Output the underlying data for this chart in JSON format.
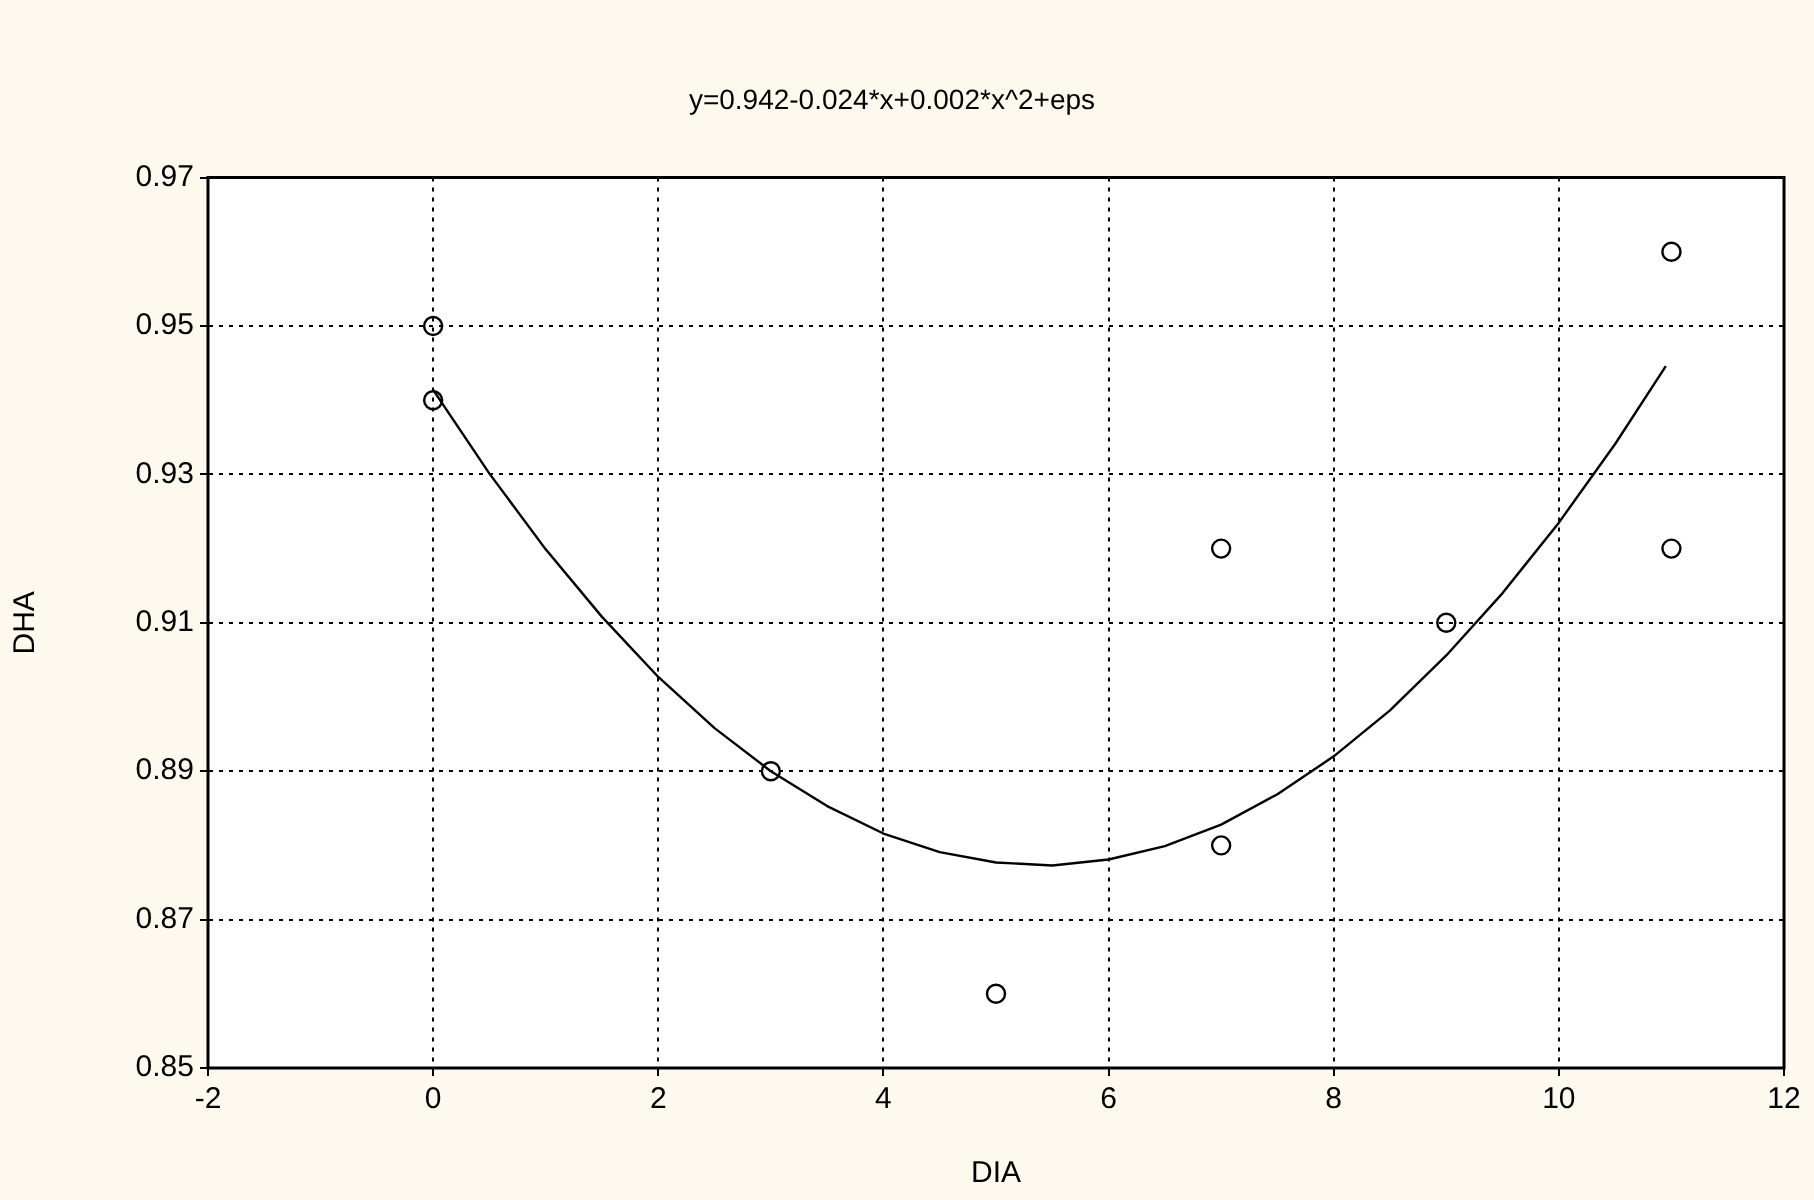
{
  "chart_data": {
    "type": "scatter",
    "title": "y=0.942-0.024*x+0.002*x^2+eps",
    "xlabel": "DIA",
    "ylabel": "DHA",
    "xlim": [
      -2,
      12
    ],
    "xticks": [
      -2,
      0,
      2,
      4,
      6,
      8,
      10,
      12
    ],
    "ylim": [
      0.85,
      0.97
    ],
    "yticks": [
      0.85,
      0.87,
      0.89,
      0.91,
      0.93,
      0.95,
      0.97
    ],
    "grid": true,
    "marker": "circle",
    "series": [
      {
        "color": "#000000",
        "x": [
          0,
          0,
          3,
          5,
          7,
          7,
          9,
          11,
          11
        ],
        "values": [
          0.95,
          0.94,
          0.89,
          0.86,
          0.92,
          0.88,
          0.91,
          0.96,
          0.92
        ]
      },
      {
        "type": "line",
        "color": "#000000",
        "marker": "none",
        "line_style": "solid",
        "x": [
          0,
          0.5,
          1,
          1.5,
          2,
          2.5,
          3,
          3.5,
          4,
          4.5,
          5,
          5.5,
          6,
          6.5,
          7,
          7.5,
          8,
          8.5,
          9,
          9.5,
          10,
          10.5,
          10.95
        ],
        "values": [
          0.9414,
          0.9301,
          0.9199,
          0.9108,
          0.9027,
          0.8958,
          0.89,
          0.8853,
          0.8816,
          0.8791,
          0.8777,
          0.8773,
          0.8781,
          0.8799,
          0.8828,
          0.8869,
          0.892,
          0.8982,
          0.9056,
          0.914,
          0.9235,
          0.9341,
          0.9446
        ]
      }
    ]
  }
}
